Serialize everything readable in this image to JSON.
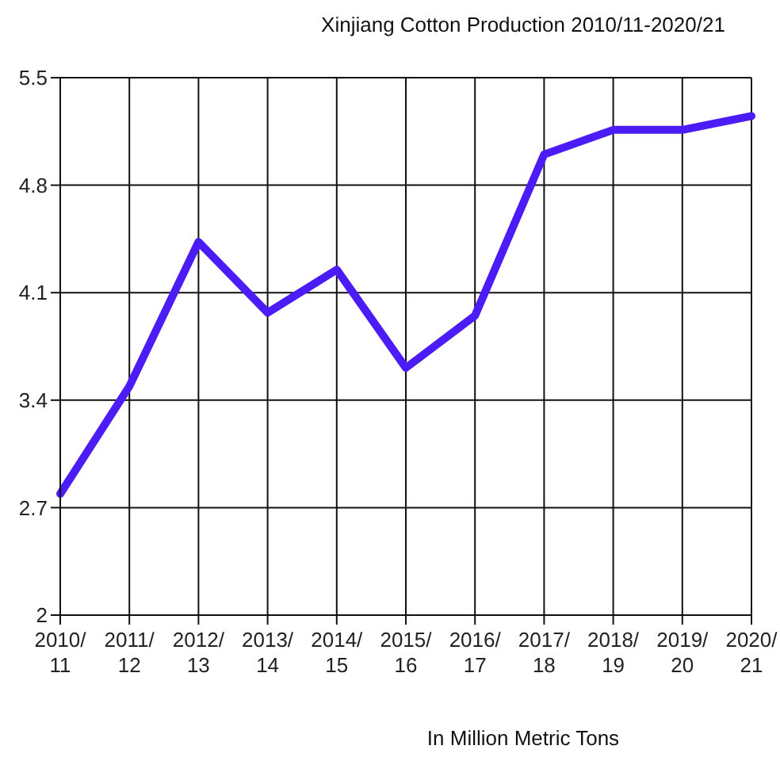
{
  "chart_data": {
    "type": "line",
    "title": "Xinjiang Cotton Production 2010/11-2020/21",
    "categories": [
      "2010/ 11",
      "2011/ 12",
      "2012/ 13",
      "2013/ 14",
      "2014/ 15",
      "2015/ 16",
      "2016/ 17",
      "2017/ 18",
      "2018/ 19",
      "2019/ 20",
      "2020/ 21"
    ],
    "series": [
      {
        "color": "#4b1cf5",
        "values": [
          2.79,
          3.49,
          4.43,
          3.97,
          4.25,
          3.61,
          3.95,
          5.0,
          5.16,
          5.16,
          5.25
        ]
      }
    ],
    "ylim": [
      2,
      5.5
    ],
    "yticks": [
      2,
      2.7,
      3.4,
      4.1,
      4.8,
      5.5
    ],
    "grid": true,
    "marker": "none",
    "line_style": "solid",
    "annotations": [
      "In Million Metric Tons"
    ]
  }
}
